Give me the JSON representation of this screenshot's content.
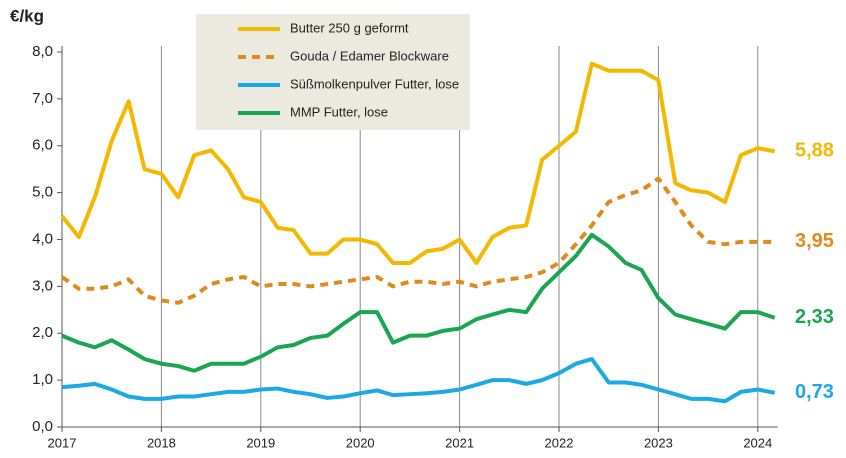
{
  "chart_data": {
    "type": "line",
    "y_label": "€/kg",
    "xlim": [
      2017,
      2024.2
    ],
    "xticks": [
      2017,
      2018,
      2019,
      2020,
      2021,
      2022,
      2023,
      2024
    ],
    "ylim": [
      0,
      8
    ],
    "yticks": [
      {
        "value": 0,
        "label": "0,0"
      },
      {
        "value": 1,
        "label": "1,0"
      },
      {
        "value": 2,
        "label": "2,0"
      },
      {
        "value": 3,
        "label": "3,0"
      },
      {
        "value": 4,
        "label": "4,0"
      },
      {
        "value": 5,
        "label": "5,0"
      },
      {
        "value": 6,
        "label": "6,0"
      },
      {
        "value": 7,
        "label": "7,0"
      },
      {
        "value": 8,
        "label": "8,0"
      }
    ],
    "grid": "x",
    "legend": "top",
    "x": [
      2017,
      2017.17,
      2017.33,
      2017.5,
      2017.67,
      2017.83,
      2018,
      2018.17,
      2018.33,
      2018.5,
      2018.67,
      2018.83,
      2019,
      2019.17,
      2019.33,
      2019.5,
      2019.67,
      2019.83,
      2020,
      2020.17,
      2020.33,
      2020.5,
      2020.67,
      2020.83,
      2021,
      2021.17,
      2021.33,
      2021.5,
      2021.67,
      2021.83,
      2022,
      2022.17,
      2022.33,
      2022.5,
      2022.67,
      2022.83,
      2023,
      2023.17,
      2023.33,
      2023.5,
      2023.67,
      2023.83,
      2024,
      2024.17
    ],
    "series": [
      {
        "name": "Butter 250 g geformt",
        "color": "#f5b800",
        "dash": false,
        "end_label": "5,88",
        "values": [
          4.5,
          4.05,
          4.9,
          6.1,
          6.95,
          5.5,
          5.4,
          4.9,
          5.8,
          5.9,
          5.5,
          4.9,
          4.8,
          4.25,
          4.2,
          3.7,
          3.7,
          4.0,
          4.0,
          3.9,
          3.5,
          3.5,
          3.75,
          3.8,
          4.0,
          3.5,
          4.05,
          4.25,
          4.3,
          5.7,
          6.0,
          6.3,
          7.75,
          7.6,
          7.6,
          7.6,
          7.4,
          5.2,
          5.05,
          5.0,
          4.8,
          5.8,
          5.95,
          5.88
        ]
      },
      {
        "name": "Gouda / Edamer Blockware",
        "color": "#e08a1e",
        "dash": true,
        "end_label": "3,95",
        "values": [
          3.2,
          2.95,
          2.95,
          3.0,
          3.15,
          2.8,
          2.7,
          2.65,
          2.8,
          3.05,
          3.15,
          3.2,
          3.0,
          3.05,
          3.05,
          3.0,
          3.05,
          3.1,
          3.15,
          3.2,
          3.0,
          3.1,
          3.1,
          3.05,
          3.1,
          3.0,
          3.1,
          3.15,
          3.2,
          3.3,
          3.5,
          3.9,
          4.3,
          4.8,
          4.95,
          5.05,
          5.3,
          4.8,
          4.3,
          3.95,
          3.9,
          3.95,
          3.95,
          3.95
        ]
      },
      {
        "name": "Süßmolkenpulver Futter, lose",
        "color": "#1aa9e6",
        "dash": false,
        "end_label": "0,73",
        "values": [
          0.85,
          0.88,
          0.92,
          0.8,
          0.65,
          0.6,
          0.6,
          0.65,
          0.65,
          0.7,
          0.75,
          0.75,
          0.8,
          0.82,
          0.75,
          0.7,
          0.62,
          0.65,
          0.72,
          0.78,
          0.68,
          0.7,
          0.72,
          0.75,
          0.8,
          0.9,
          1.0,
          1.0,
          0.92,
          1.0,
          1.15,
          1.35,
          1.45,
          0.95,
          0.95,
          0.9,
          0.8,
          0.7,
          0.6,
          0.6,
          0.55,
          0.75,
          0.8,
          0.73
        ]
      },
      {
        "name": "MMP Futter, lose",
        "color": "#1aa650",
        "dash": false,
        "end_label": "2,33",
        "values": [
          1.95,
          1.8,
          1.7,
          1.85,
          1.65,
          1.45,
          1.35,
          1.3,
          1.2,
          1.35,
          1.35,
          1.35,
          1.5,
          1.7,
          1.75,
          1.9,
          1.95,
          2.2,
          2.45,
          2.45,
          1.8,
          1.95,
          1.95,
          2.05,
          2.1,
          2.3,
          2.4,
          2.5,
          2.45,
          2.95,
          3.3,
          3.65,
          4.1,
          3.85,
          3.5,
          3.35,
          2.75,
          2.4,
          2.3,
          2.2,
          2.1,
          2.45,
          2.45,
          2.33
        ]
      }
    ]
  }
}
